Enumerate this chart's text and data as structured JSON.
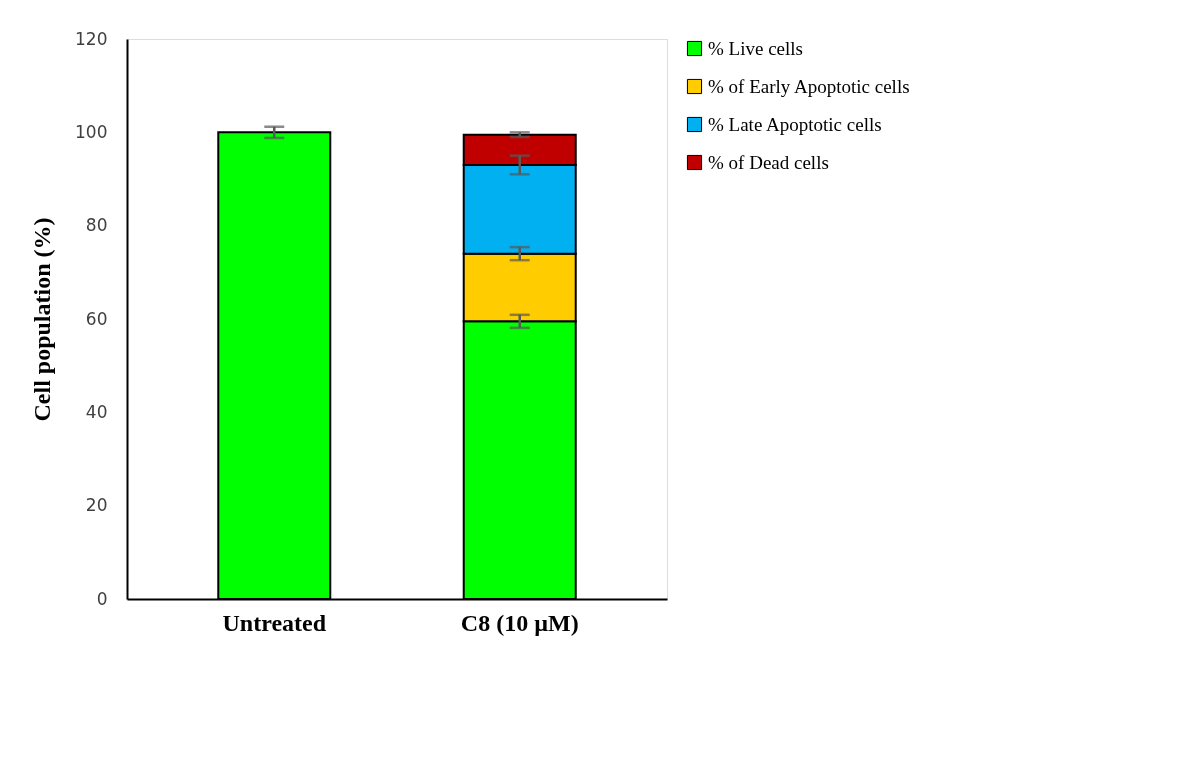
{
  "chart_data": {
    "type": "bar",
    "stacked": true,
    "ylabel": "Cell population (%)",
    "categories": [
      "Untreated",
      "C8 (10 µM)"
    ],
    "series": [
      {
        "name": "% Live cells",
        "color": "#00ff00",
        "values": [
          100,
          59.5
        ],
        "errors": [
          1.2,
          1.4
        ]
      },
      {
        "name": "% of Early Apoptotic cells",
        "color": "#ffcc00",
        "values": [
          null,
          14.5
        ],
        "errors": [
          null,
          1.4
        ]
      },
      {
        "name": "% Late Apoptotic cells",
        "color": "#00b0f0",
        "values": [
          null,
          19
        ],
        "errors": [
          null,
          2
        ]
      },
      {
        "name": "% of Dead cells",
        "color": "#c00000",
        "values": [
          null,
          6.5
        ],
        "errors": [
          null,
          0.5
        ]
      }
    ],
    "ylim": [
      0,
      120
    ],
    "yticks": [
      0,
      20,
      40,
      60,
      80,
      100,
      120
    ],
    "grid": false,
    "legend": "right"
  }
}
